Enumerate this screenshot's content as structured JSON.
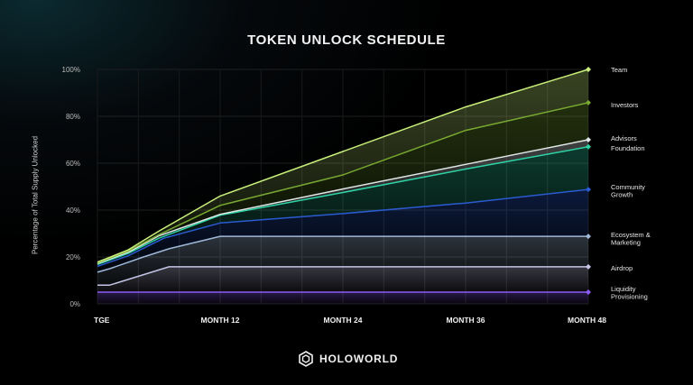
{
  "chart_data": {
    "type": "area",
    "title": "TOKEN UNLOCK SCHEDULE",
    "xlabel": "",
    "ylabel": "Percentage of Total Supply Unlocked",
    "ylim": [
      0,
      100
    ],
    "xlim": [
      0,
      48
    ],
    "yticks": [
      "0%",
      "20%",
      "40%",
      "60%",
      "80%",
      "100%"
    ],
    "yticks_values": [
      0,
      20,
      40,
      60,
      80,
      100
    ],
    "xticks": [
      {
        "x": 0,
        "label": "TGE"
      },
      {
        "x": 12,
        "label": "MONTH 12"
      },
      {
        "x": 24,
        "label": "MONTH 24"
      },
      {
        "x": 36,
        "label": "MONTH 36"
      },
      {
        "x": 48,
        "label": "MONTH 48"
      }
    ],
    "grid": true,
    "legend_position": "right (labels at line ends)",
    "series": [
      {
        "name": "Liquidity Provisioning",
        "color": "#8b5cf6",
        "points": [
          [
            0,
            5
          ],
          [
            48,
            5
          ]
        ]
      },
      {
        "name": "Airdrop",
        "color": "#c4c4e8",
        "points": [
          [
            0,
            8
          ],
          [
            1.2,
            8
          ],
          [
            7,
            15.8
          ],
          [
            48,
            15.8
          ]
        ]
      },
      {
        "name": "Ecosystem & Marketing",
        "color": "#9fb8d8",
        "points": [
          [
            0,
            13.5
          ],
          [
            1.2,
            15
          ],
          [
            4.5,
            20
          ],
          [
            7,
            23.5
          ],
          [
            12,
            28.8
          ],
          [
            48,
            28.8
          ]
        ]
      },
      {
        "name": "Community Growth",
        "color": "#2a5bd0",
        "points": [
          [
            0,
            16
          ],
          [
            3,
            20.5
          ],
          [
            6.5,
            28
          ],
          [
            12,
            34.5
          ],
          [
            24,
            38.5
          ],
          [
            36,
            43
          ],
          [
            48,
            48.8
          ]
        ]
      },
      {
        "name": "Foundation",
        "color": "#2ed3a6",
        "points": [
          [
            0,
            16.8
          ],
          [
            3,
            21.5
          ],
          [
            6,
            28
          ],
          [
            12,
            37.8
          ],
          [
            24,
            47.5
          ],
          [
            36,
            57.5
          ],
          [
            48,
            67
          ]
        ]
      },
      {
        "name": "Advisors",
        "color": "#dfe8e6",
        "points": [
          [
            0,
            17.2
          ],
          [
            3,
            22
          ],
          [
            6,
            29
          ],
          [
            12,
            38.2
          ],
          [
            24,
            49
          ],
          [
            36,
            59.5
          ],
          [
            48,
            70
          ]
        ]
      },
      {
        "name": "Investors",
        "color": "#78a832",
        "points": [
          [
            0,
            17.5
          ],
          [
            3,
            22.5
          ],
          [
            6,
            29.5
          ],
          [
            12,
            42
          ],
          [
            24,
            55
          ],
          [
            36,
            74
          ],
          [
            48,
            85.8
          ]
        ]
      },
      {
        "name": "Team",
        "color": "#c8f07a",
        "points": [
          [
            0,
            17.8
          ],
          [
            3,
            23
          ],
          [
            6,
            31
          ],
          [
            12,
            46
          ],
          [
            24,
            65
          ],
          [
            36,
            84
          ],
          [
            48,
            100
          ]
        ]
      }
    ],
    "legend": [
      {
        "label": "Team"
      },
      {
        "label": "Investors"
      },
      {
        "label": "Advisors"
      },
      {
        "label": "Foundation"
      },
      {
        "label": "Community Growth"
      },
      {
        "label": "Ecosystem & Marketing"
      },
      {
        "label": "Airdrop"
      },
      {
        "label": "Liquidity Provisioning"
      }
    ]
  },
  "brand": {
    "name": "HOLOWORLD",
    "logo_icon": "holoworld-logo-icon"
  },
  "colors": {
    "background": "#000000",
    "grid": "#1e1e1e",
    "text": "#e8e8e8"
  }
}
